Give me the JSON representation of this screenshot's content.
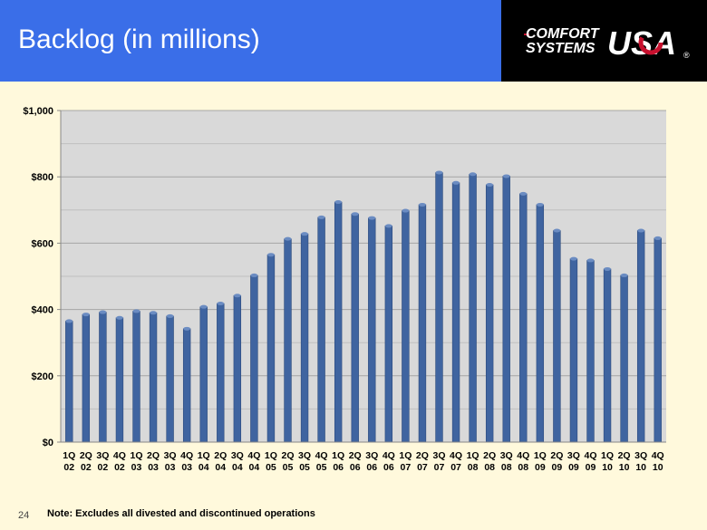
{
  "header": {
    "title": "Backlog (in millions)",
    "logo": {
      "line1": "COMFORT",
      "line2": "SYSTEMS",
      "brand": "USA",
      "mark": "®"
    }
  },
  "colors": {
    "title_bg": "#3a6ee8",
    "page_bg": "#fff9dc",
    "plot_bg": "#d9d9d9",
    "bar": "#3f64a0",
    "bar_light": "#6b8cc2"
  },
  "chart_data": {
    "type": "bar",
    "title": "",
    "xlabel": "",
    "ylabel": "",
    "ylim": [
      0,
      1000
    ],
    "yticks": [
      0,
      200,
      400,
      600,
      800,
      1000
    ],
    "ytick_labels": [
      "$0",
      "$200",
      "$400",
      "$600",
      "$800",
      "$1,000"
    ],
    "grid": true,
    "categories": [
      [
        "1Q",
        "02"
      ],
      [
        "2Q",
        "02"
      ],
      [
        "3Q",
        "02"
      ],
      [
        "4Q",
        "02"
      ],
      [
        "1Q",
        "03"
      ],
      [
        "2Q",
        "03"
      ],
      [
        "3Q",
        "03"
      ],
      [
        "4Q",
        "03"
      ],
      [
        "1Q",
        "04"
      ],
      [
        "2Q",
        "04"
      ],
      [
        "3Q",
        "04"
      ],
      [
        "4Q",
        "04"
      ],
      [
        "1Q",
        "05"
      ],
      [
        "2Q",
        "05"
      ],
      [
        "3Q",
        "05"
      ],
      [
        "4Q",
        "05"
      ],
      [
        "1Q",
        "06"
      ],
      [
        "2Q",
        "06"
      ],
      [
        "3Q",
        "06"
      ],
      [
        "4Q",
        "06"
      ],
      [
        "1Q",
        "07"
      ],
      [
        "2Q",
        "07"
      ],
      [
        "3Q",
        "07"
      ],
      [
        "4Q",
        "07"
      ],
      [
        "1Q",
        "08"
      ],
      [
        "2Q",
        "08"
      ],
      [
        "3Q",
        "08"
      ],
      [
        "4Q",
        "08"
      ],
      [
        "1Q",
        "09"
      ],
      [
        "2Q",
        "09"
      ],
      [
        "3Q",
        "09"
      ],
      [
        "4Q",
        "09"
      ],
      [
        "1Q",
        "10"
      ],
      [
        "2Q",
        "10"
      ],
      [
        "3Q",
        "10"
      ],
      [
        "4Q",
        "10"
      ]
    ],
    "values": [
      365,
      385,
      392,
      375,
      395,
      390,
      380,
      342,
      408,
      418,
      442,
      503,
      565,
      613,
      628,
      678,
      724,
      688,
      676,
      652,
      698,
      716,
      813,
      782,
      808,
      776,
      802,
      749,
      716,
      638,
      553,
      548,
      522,
      503,
      638,
      615
    ]
  },
  "footer": {
    "page_number": "24",
    "note": "Note: Excludes all divested and discontinued operations"
  }
}
